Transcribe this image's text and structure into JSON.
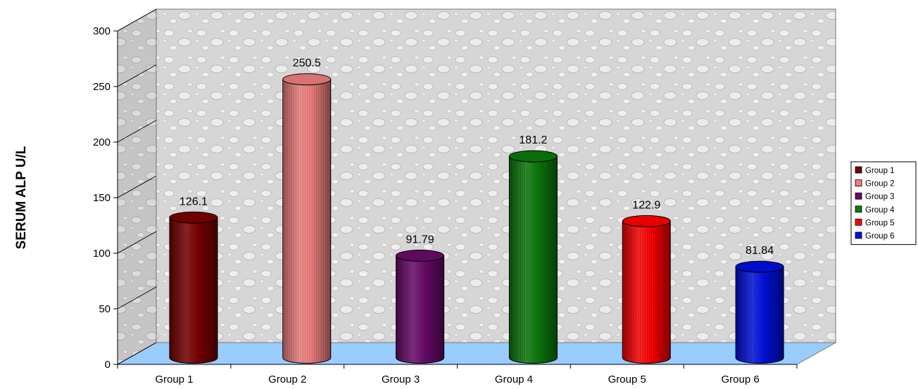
{
  "chart_data": {
    "type": "bar",
    "style": "3d-cylinder",
    "title": "",
    "xlabel": "",
    "ylabel": "SERUM ALP U/L",
    "categories": [
      "Group 1",
      "Group 2",
      "Group 3",
      "Group 4",
      "Group 5",
      "Group 6"
    ],
    "values": [
      126.1,
      250.5,
      91.79,
      181.2,
      122.9,
      81.84
    ],
    "data_labels": [
      "126.1",
      "250.5",
      "91.79",
      "181.2",
      "122.9",
      "81.84"
    ],
    "colors": [
      "#7a0000",
      "#f08080",
      "#6a0a6a",
      "#0a7a0a",
      "#ff0000",
      "#0010e0"
    ],
    "ylim": [
      0,
      300
    ],
    "yticks": [
      0,
      50,
      100,
      150,
      200,
      250,
      300
    ],
    "grid": false,
    "floor_color": "#99ccff",
    "wall_color": "#d8d8d8",
    "legend": {
      "position": "right",
      "entries": [
        "Group 1",
        "Group 2",
        "Group 3",
        "Group 4",
        "Group 5",
        "Group 6"
      ]
    }
  }
}
